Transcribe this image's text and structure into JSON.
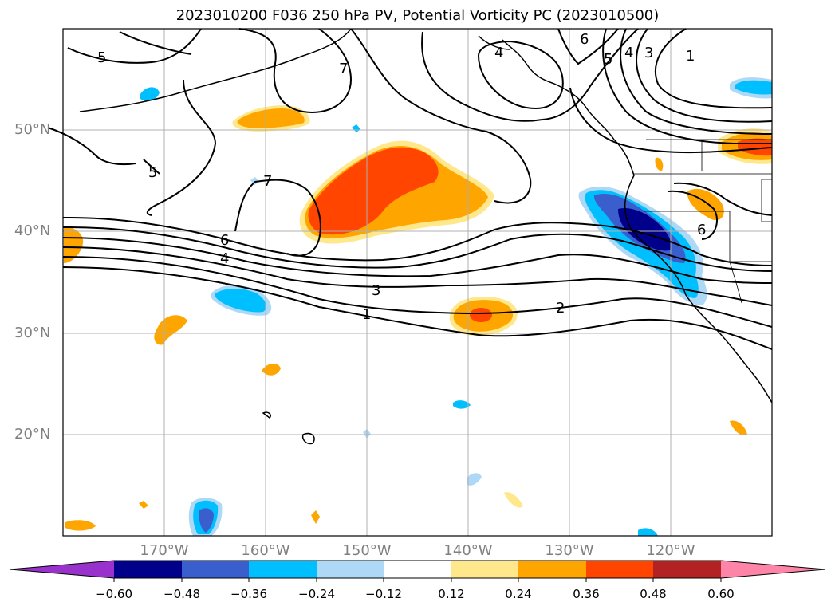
{
  "title": "2023010200 F036 250 hPa PV, Potential Vorticity PC (2023010500)",
  "map": {
    "lat_labels": [
      "50°N",
      "40°N",
      "30°N",
      "20°N"
    ],
    "lon_labels": [
      "170°W",
      "160°W",
      "150°W",
      "140°W",
      "130°W",
      "120°W"
    ],
    "contour_labels": [
      "5",
      "5",
      "7",
      "7",
      "6",
      "4",
      "3",
      "2",
      "1",
      "6",
      "5",
      "4",
      "3",
      "1",
      "4",
      "6"
    ]
  },
  "colorbar": {
    "ticks": [
      "−0.60",
      "−0.48",
      "−0.36",
      "−0.24",
      "−0.12",
      "0.12",
      "0.24",
      "0.36",
      "0.48",
      "0.60"
    ],
    "colors": [
      "#9932cc",
      "#00008b",
      "#3a5fcd",
      "#00bfff",
      "#add8f6",
      "#ffffff",
      "#ffe88c",
      "#ffa500",
      "#ff4500",
      "#b22222",
      "#ff85a8"
    ]
  }
}
